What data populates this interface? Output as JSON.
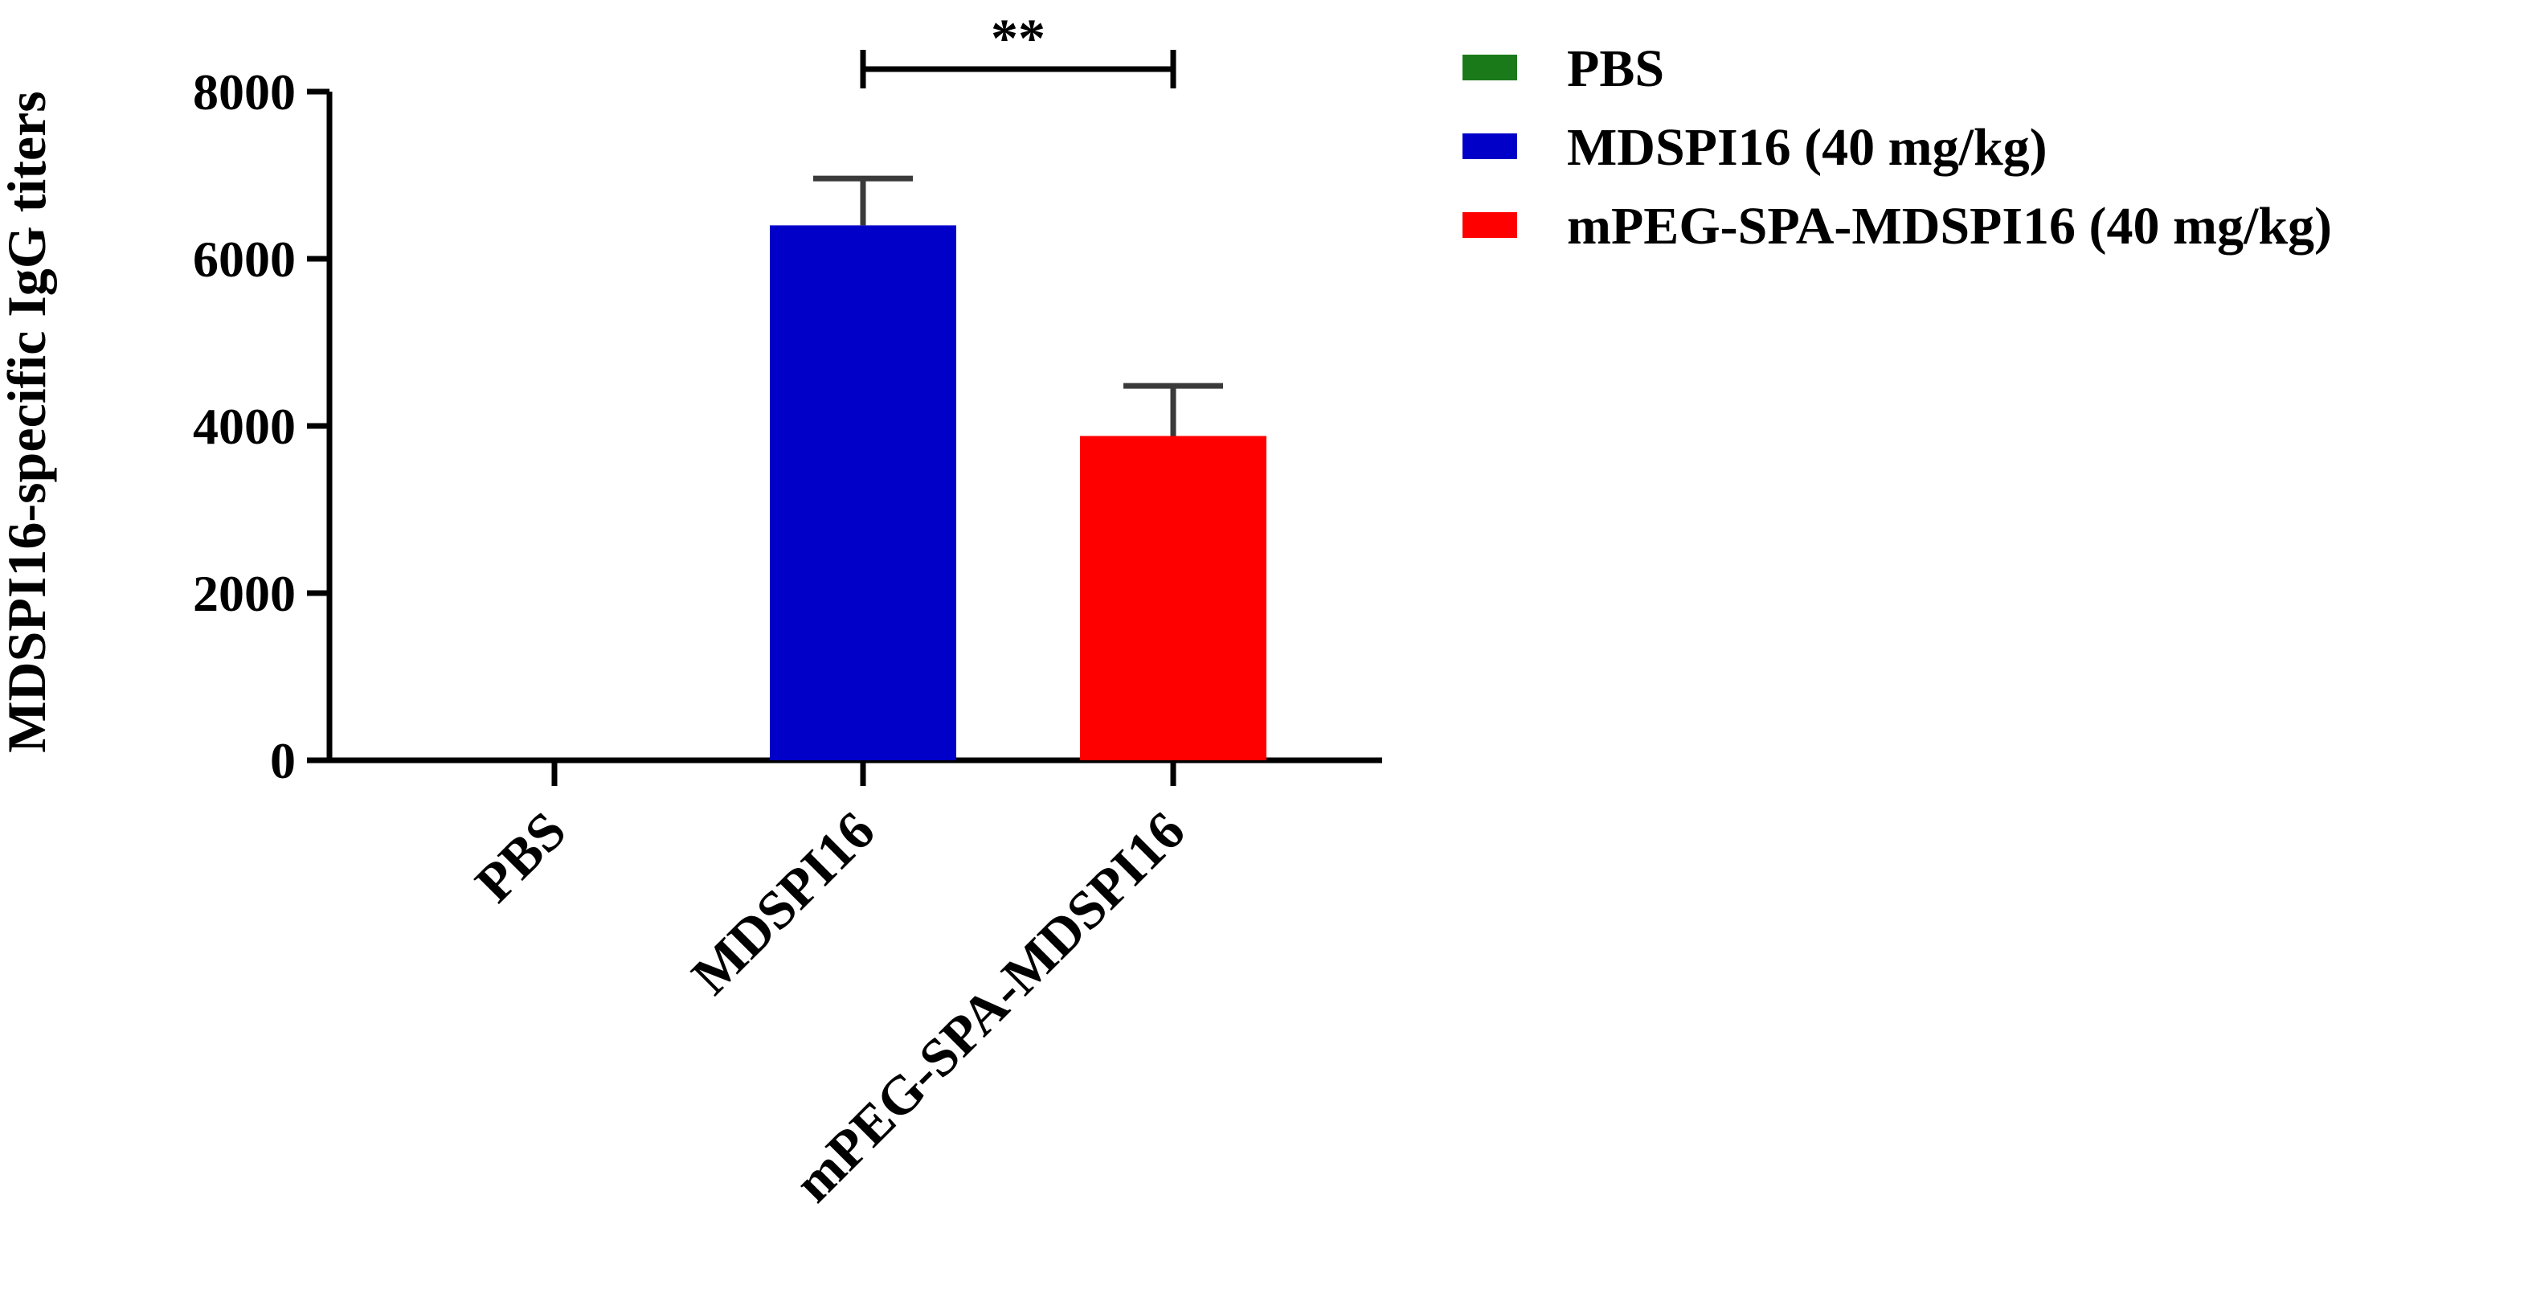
{
  "chart_data": {
    "type": "bar",
    "categories": [
      "PBS",
      "MDSPI16",
      "mPEG-SPA-MDSPI16"
    ],
    "values": [
      0,
      6400,
      3880
    ],
    "errors": [
      0,
      560,
      600
    ],
    "colors": [
      "#1a7a1a",
      "#0000c8",
      "#ff0000"
    ],
    "ylabel": "MDSPI16-specific IgG titers",
    "ylim": [
      0,
      8000
    ],
    "yticks": [
      0,
      2000,
      4000,
      6000,
      8000
    ],
    "grid": false,
    "legend": {
      "placement": "top-right",
      "entries": [
        {
          "label": "PBS",
          "color": "#1a7a1a"
        },
        {
          "label": "MDSPI16 (40 mg/kg)",
          "color": "#0000c8"
        },
        {
          "label": "mPEG-SPA-MDSPI16 (40 mg/kg)",
          "color": "#ff0000"
        }
      ]
    },
    "significance": [
      {
        "from": "MDSPI16",
        "to": "mPEG-SPA-MDSPI16",
        "label": "**"
      }
    ]
  }
}
